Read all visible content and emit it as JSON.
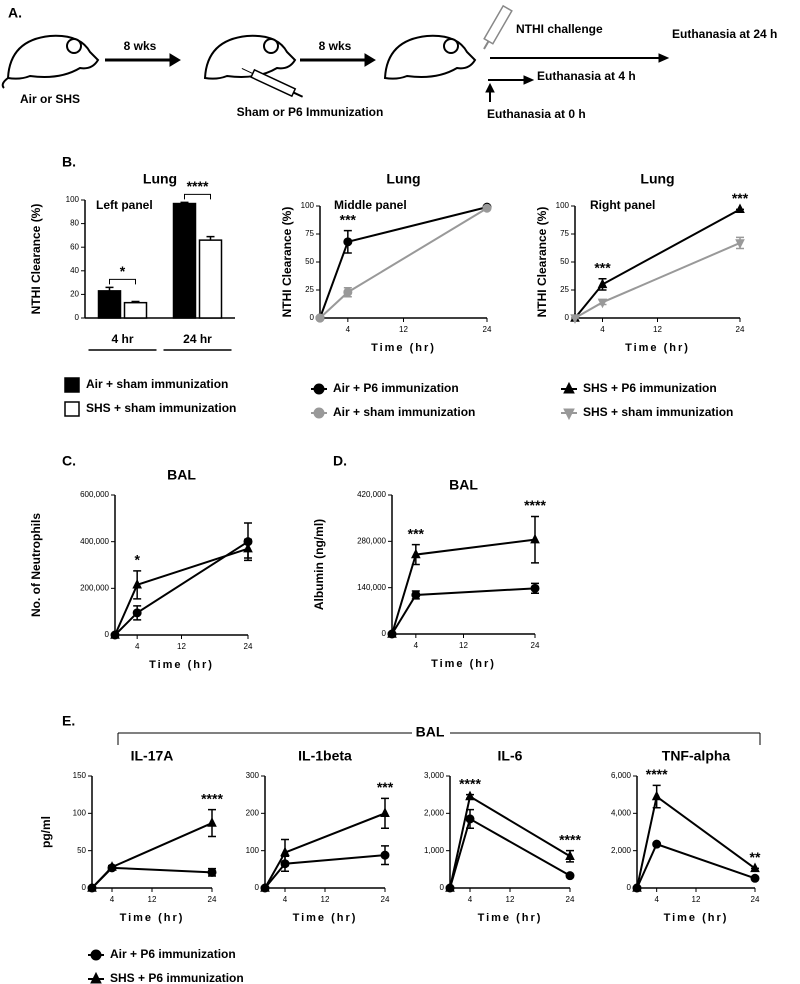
{
  "diagram": {
    "panel_label": "A.",
    "start": "Air or SHS",
    "interval_1": "8 wks",
    "immunization": "Sham or P6 Immunization",
    "interval_2": "8 wks",
    "challenge": "NTHI challenge",
    "end_24h": "Euthanasia at 24 h",
    "end_4h": "Euthanasia at 4 h",
    "end_0h": "Euthanasia at 0 h"
  },
  "panel_labels": [
    "B.",
    "C.",
    "D.",
    "E."
  ],
  "group_title": "BAL",
  "chart_data": [
    {
      "type": "bar",
      "title": "Lung",
      "annotation": "Left panel",
      "ylabel": "NTHI Clearance (%)",
      "ylim": [
        0,
        100
      ],
      "yticks": [
        0,
        20,
        40,
        60,
        80,
        100
      ],
      "categories": [
        "4 hr",
        "24 hr"
      ],
      "significance": [
        "*",
        "****"
      ],
      "legend": true,
      "series": [
        {
          "name": "Air + sham immunization",
          "color": "#000000",
          "marker": "square",
          "values": [
            23,
            97
          ],
          "errors": [
            3,
            1
          ]
        },
        {
          "name": "SHS + sham immunization",
          "color": "#ffffff",
          "marker": "square",
          "values": [
            13,
            66
          ],
          "errors": [
            1,
            3
          ]
        }
      ]
    },
    {
      "type": "line",
      "title": "Lung",
      "annotation": "Middle panel",
      "ylabel": "NTHI Clearance (%)",
      "xlabel": "Time (hr)",
      "x": [
        0,
        4,
        24
      ],
      "xlim": [
        0,
        24
      ],
      "xticks": [
        4,
        12,
        24
      ],
      "ylim": [
        0,
        100
      ],
      "yticks": [
        0,
        25,
        50,
        75,
        100
      ],
      "significance": [
        null,
        "***",
        null
      ],
      "legend": true,
      "series": [
        {
          "name": "Air + P6 immunization",
          "color": "#000000",
          "marker": "circle",
          "values": [
            0,
            68,
            99
          ],
          "errors": [
            0,
            10,
            0
          ]
        },
        {
          "name": "Air + sham immunization",
          "color": "#999999",
          "marker": "circle",
          "values": [
            0,
            23,
            98
          ],
          "errors": [
            0,
            4,
            0
          ]
        }
      ]
    },
    {
      "type": "line",
      "title": "Lung",
      "annotation": "Right panel",
      "ylabel": "NTHI Clearance (%)",
      "xlabel": "Time (hr)",
      "x": [
        0,
        4,
        24
      ],
      "xlim": [
        0,
        24
      ],
      "xticks": [
        4,
        12,
        24
      ],
      "ylim": [
        0,
        100
      ],
      "yticks": [
        0,
        25,
        50,
        75,
        100
      ],
      "significance": [
        null,
        "***",
        "***"
      ],
      "legend": true,
      "series": [
        {
          "name": "SHS + P6 immunization",
          "color": "#000000",
          "marker": "triangle",
          "values": [
            0,
            30,
            97
          ],
          "errors": [
            0,
            5,
            0
          ]
        },
        {
          "name": "SHS + sham immunization",
          "color": "#999999",
          "marker": "triangle-down",
          "values": [
            0,
            14,
            67
          ],
          "errors": [
            0,
            2,
            5
          ]
        }
      ]
    },
    {
      "type": "line",
      "title": "BAL",
      "ylabel": "No. of Neutrophils",
      "xlabel": "Time (hr)",
      "x": [
        0,
        4,
        24
      ],
      "xlim": [
        0,
        24
      ],
      "xticks": [
        4,
        12,
        24
      ],
      "ylim": [
        0,
        600000
      ],
      "yticks": [
        0,
        {
          "value": 200000,
          "label": "200,000"
        },
        {
          "value": 400000,
          "label": "400,000"
        },
        {
          "value": 600000,
          "label": "600,000"
        }
      ],
      "significance": [
        null,
        "*",
        null
      ],
      "series": [
        {
          "name": "Air + P6 immunization",
          "color": "#000000",
          "marker": "circle",
          "values": [
            0,
            95000,
            400000
          ],
          "errors": [
            0,
            30000,
            80000
          ]
        },
        {
          "name": "SHS + P6 immunization",
          "color": "#000000",
          "marker": "triangle",
          "values": [
            0,
            215000,
            370000
          ],
          "errors": [
            0,
            60000,
            40000
          ]
        }
      ]
    },
    {
      "type": "line",
      "title": "BAL",
      "ylabel": "Albumin (ng/ml)",
      "xlabel": "Time (hr)",
      "x": [
        0,
        4,
        24
      ],
      "xlim": [
        0,
        24
      ],
      "xticks": [
        4,
        12,
        24
      ],
      "ylim": [
        0,
        420000
      ],
      "yticks": [
        0,
        {
          "value": 140000,
          "label": "140,000"
        },
        {
          "value": 280000,
          "label": "280,000"
        },
        {
          "value": 420000,
          "label": "420,000"
        }
      ],
      "significance": [
        null,
        "***",
        "****"
      ],
      "series": [
        {
          "name": "Air + P6 immunization",
          "color": "#000000",
          "marker": "circle",
          "values": [
            0,
            118000,
            138000
          ],
          "errors": [
            0,
            12000,
            15000
          ]
        },
        {
          "name": "SHS + P6 immunization",
          "color": "#000000",
          "marker": "triangle",
          "values": [
            0,
            240000,
            285000
          ],
          "errors": [
            0,
            30000,
            70000
          ]
        }
      ]
    },
    {
      "type": "line",
      "title": "IL-17A",
      "ylabel": "pg/ml",
      "xlabel": "Time (hr)",
      "x": [
        0,
        4,
        24
      ],
      "xlim": [
        0,
        24
      ],
      "xticks": [
        4,
        12,
        24
      ],
      "ylim": [
        0,
        150
      ],
      "yticks": [
        0,
        50,
        100,
        150
      ],
      "significance": [
        null,
        null,
        "****"
      ],
      "legend": true,
      "series": [
        {
          "name": "Air + P6 immunization",
          "color": "#000000",
          "marker": "circle",
          "values": [
            0,
            27,
            21
          ],
          "errors": [
            0,
            2,
            5
          ]
        },
        {
          "name": "SHS + P6 immunization",
          "color": "#000000",
          "marker": "triangle",
          "values": [
            0,
            28,
            87
          ],
          "errors": [
            0,
            2,
            18
          ]
        }
      ]
    },
    {
      "type": "line",
      "title": "IL-1beta",
      "xlabel": "Time (hr)",
      "x": [
        0,
        4,
        24
      ],
      "xlim": [
        0,
        24
      ],
      "xticks": [
        4,
        12,
        24
      ],
      "ylim": [
        0,
        300
      ],
      "yticks": [
        0,
        100,
        200,
        300
      ],
      "significance": [
        null,
        null,
        "***"
      ],
      "series": [
        {
          "name": "Air + P6 immunization",
          "color": "#000000",
          "marker": "circle",
          "values": [
            0,
            65,
            88
          ],
          "errors": [
            0,
            20,
            25
          ]
        },
        {
          "name": "SHS + P6 immunization",
          "color": "#000000",
          "marker": "triangle",
          "values": [
            0,
            95,
            200
          ],
          "errors": [
            0,
            35,
            40
          ]
        }
      ]
    },
    {
      "type": "line",
      "title": "IL-6",
      "xlabel": "Time (hr)",
      "x": [
        0,
        4,
        24
      ],
      "xlim": [
        0,
        24
      ],
      "xticks": [
        4,
        12,
        24
      ],
      "ylim": [
        0,
        3000
      ],
      "yticks": [
        0,
        {
          "value": 1000,
          "label": "1,000"
        },
        {
          "value": 2000,
          "label": "2,000"
        },
        {
          "value": 3000,
          "label": "3,000"
        }
      ],
      "significance": [
        null,
        "****",
        "****"
      ],
      "series": [
        {
          "name": "Air + P6 immunization",
          "color": "#000000",
          "marker": "circle",
          "values": [
            0,
            1850,
            330
          ],
          "errors": [
            0,
            250,
            0
          ]
        },
        {
          "name": "SHS + P6 immunization",
          "color": "#000000",
          "marker": "triangle",
          "values": [
            0,
            2450,
            850
          ],
          "errors": [
            0,
            50,
            150
          ]
        }
      ]
    },
    {
      "type": "line",
      "title": "TNF-alpha",
      "xlabel": "Time (hr)",
      "x": [
        0,
        4,
        24
      ],
      "xlim": [
        0,
        24
      ],
      "xticks": [
        4,
        12,
        24
      ],
      "ylim": [
        0,
        6000
      ],
      "yticks": [
        0,
        {
          "value": 2000,
          "label": "2,000"
        },
        {
          "value": 4000,
          "label": "4,000"
        },
        {
          "value": 6000,
          "label": "6,000"
        }
      ],
      "significance": [
        null,
        "****",
        "**"
      ],
      "series": [
        {
          "name": "Air + P6 immunization",
          "color": "#000000",
          "marker": "circle",
          "values": [
            0,
            2350,
            520
          ],
          "errors": [
            0,
            0,
            0
          ]
        },
        {
          "name": "SHS + P6 immunization",
          "color": "#000000",
          "marker": "triangle",
          "values": [
            0,
            4900,
            1050
          ],
          "errors": [
            0,
            600,
            0
          ]
        }
      ]
    }
  ]
}
